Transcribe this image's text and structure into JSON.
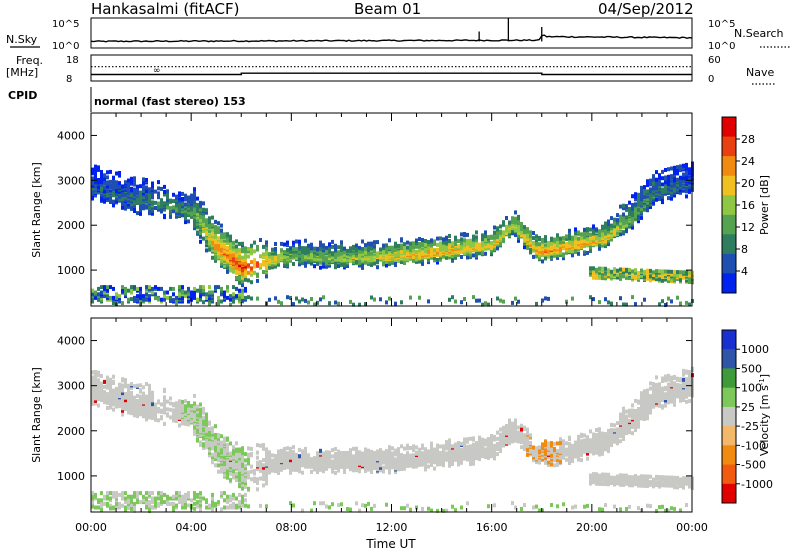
{
  "header": {
    "station": "Hankasalmi (fitACF)",
    "beam": "Beam 01",
    "date": "04/Sep/2012"
  },
  "top_panels": {
    "nsky_label": "N.Sky",
    "nsky_ticks": [
      "10^5",
      "10^0"
    ],
    "nsearch_label": "N.Search",
    "nsearch_ticks": [
      "10^5",
      "10^0"
    ],
    "freq_label": "Freq.",
    "freq_unit": "[MHz]",
    "freq_ticks": [
      "18",
      "8"
    ],
    "nave_label": "Nave",
    "nave_ticks": [
      "60",
      "0"
    ],
    "cpid_label": "CPID",
    "cpid_text": "normal (fast stereo) 153"
  },
  "colors": {
    "power_scale": [
      "#0022ee",
      "#1f4fb0",
      "#2e7d5e",
      "#55a350",
      "#8fc744",
      "#f0c020",
      "#f08a10",
      "#e84010",
      "#e00000"
    ],
    "velocity_scale": [
      "#e00000",
      "#f25a10",
      "#f08a10",
      "#f3b86a",
      "#c8c8c4",
      "#7cc85a",
      "#3f9a3a",
      "#2f55a8",
      "#1a2fd0"
    ],
    "ground_scatter": "#c8c8c4"
  },
  "chart_data": [
    {
      "type": "line",
      "name_label": "N.Sky / N.Search",
      "x": [
        "00:00",
        "04:00",
        "08:00",
        "12:00",
        "16:00",
        "18:00",
        "20:00",
        "00:00"
      ],
      "nsky_level": [
        0.2,
        0.22,
        0.23,
        0.24,
        0.26,
        0.4,
        0.36,
        0.34
      ],
      "spikes": [
        {
          "x": "15:30",
          "value": 0.55
        },
        {
          "x": "16:40",
          "value": 1.0
        },
        {
          "x": "18:00",
          "value": 0.7
        }
      ]
    },
    {
      "type": "line",
      "name_label": "Freq. / Nave",
      "freq_mhz": {
        "x": [
          "00:00",
          "06:00",
          "06:00",
          "18:00",
          "18:00",
          "00:00"
        ],
        "values": [
          10.5,
          10.5,
          11.0,
          11.0,
          10.5,
          10.5
        ]
      },
      "nave": {
        "x": [
          "00:00",
          "24:00"
        ],
        "values": [
          33,
          33
        ]
      }
    },
    {
      "type": "heatmap",
      "title": "",
      "ylabel": "Slant Range [km]",
      "yticks": [
        "1000",
        "2000",
        "3000",
        "4000"
      ],
      "ylim": [
        200,
        4500
      ],
      "xlim_hours": [
        0,
        24
      ],
      "colorbar_label": "Power [dB]",
      "colorbar_ticks": [
        "28",
        "24",
        "20",
        "16",
        "12",
        "8",
        "4"
      ],
      "colorbar_range": [
        0,
        32
      ],
      "features": [
        {
          "name": "F-region band",
          "x_hours": [
            0,
            2,
            4,
            5,
            6,
            8,
            10,
            12,
            14,
            16,
            16.8,
            17.8,
            19,
            20.5,
            21.5,
            22.5,
            24
          ],
          "y_km": [
            2800,
            2500,
            2300,
            1500,
            1050,
            1300,
            1250,
            1300,
            1400,
            1550,
            2000,
            1400,
            1500,
            1700,
            2100,
            2700,
            2900
          ],
          "power_db": [
            6,
            8,
            12,
            24,
            28,
            14,
            16,
            20,
            22,
            20,
            18,
            24,
            22,
            20,
            14,
            8,
            6
          ]
        },
        {
          "name": "Near-range E-region",
          "x_hours": [
            0,
            2,
            4,
            6
          ],
          "y_km": [
            450,
            480,
            500,
            520
          ],
          "power_db": [
            10,
            14,
            12,
            10
          ]
        },
        {
          "name": "Late band",
          "x_hours": [
            20,
            22,
            24
          ],
          "y_km": [
            950,
            900,
            850
          ],
          "power_db": [
            8,
            10,
            12
          ]
        }
      ]
    },
    {
      "type": "heatmap",
      "title": "",
      "ylabel": "Slant Range [km]",
      "yticks": [
        "1000",
        "2000",
        "3000",
        "4000"
      ],
      "ylim": [
        200,
        4500
      ],
      "xlim_hours": [
        0,
        24
      ],
      "xticks": [
        "00:00",
        "04:00",
        "08:00",
        "12:00",
        "16:00",
        "20:00",
        "00:00"
      ],
      "xlabel": "Time UT",
      "colorbar_label": "Velocity [m s",
      "colorbar_unit_exp": "-1",
      "colorbar_label_tail": "]",
      "colorbar_ticks": [
        "1000",
        "500",
        "100",
        "25",
        "-25",
        "-100",
        "-500",
        "-1000"
      ],
      "features": [
        {
          "name": "Mostly ground scatter",
          "velocity_ms": 0
        },
        {
          "name": "Green patches",
          "x_hours": [
            4,
            6
          ],
          "velocity_ms": 80
        },
        {
          "name": "Orange patches",
          "x_hours": [
            17.5,
            18.5
          ],
          "velocity_ms": -150
        }
      ]
    }
  ]
}
